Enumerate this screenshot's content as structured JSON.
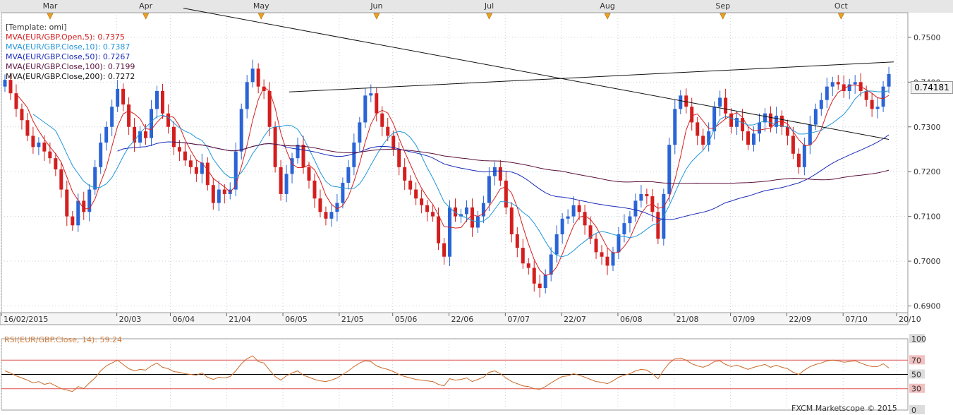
{
  "chart_data": {
    "type": "candlestick",
    "template": "[Template: omi]",
    "instrument": "EUR/GBP",
    "current_price": "0.74181",
    "credit": "FXCM Marketscope © 2015",
    "months": [
      {
        "label": "Mar",
        "x": 1
      },
      {
        "label": "Apr",
        "x": 35
      },
      {
        "label": "May",
        "x": 76
      },
      {
        "label": "Jun",
        "x": 117
      },
      {
        "label": "Jul",
        "x": 157
      },
      {
        "label": "Aug",
        "x": 199
      },
      {
        "label": "Sep",
        "x": 240
      },
      {
        "label": "Oct",
        "x": 282
      }
    ],
    "date_labels": [
      {
        "label": "16/02/2015",
        "x": 0
      },
      {
        "label": "20/03",
        "x": 41
      },
      {
        "label": "06/04",
        "x": 60
      },
      {
        "label": "21/04",
        "x": 80
      },
      {
        "label": "06/05",
        "x": 100
      },
      {
        "label": "21/05",
        "x": 120
      },
      {
        "label": "05/06",
        "x": 139
      },
      {
        "label": "22/06",
        "x": 159
      },
      {
        "label": "07/07",
        "x": 179
      },
      {
        "label": "22/07",
        "x": 199
      },
      {
        "label": "06/08",
        "x": 219
      },
      {
        "label": "21/08",
        "x": 239
      },
      {
        "label": "07/09",
        "x": 259
      },
      {
        "label": "22/09",
        "x": 279
      },
      {
        "label": "07/10",
        "x": 299
      },
      {
        "label": "20/10",
        "x": 318
      }
    ],
    "y_axis": {
      "min": 0.6885,
      "max": 0.7555,
      "ticks": [
        "0.6900",
        "0.7000",
        "0.7100",
        "0.7200",
        "0.7300",
        "0.7400",
        "0.7500"
      ],
      "tick_values": [
        0.69,
        0.7,
        0.71,
        0.72,
        0.73,
        0.74,
        0.75
      ]
    },
    "x_range": [
      0,
      322
    ],
    "legend": [
      {
        "text": "[Template: omi]",
        "color": "#333333"
      },
      {
        "text": "MVA(EUR/GBP.Open,5): 0.7375",
        "color": "#d62020"
      },
      {
        "text": "MVA(EUR/GBP.Close,10): 0.7387",
        "color": "#2196d9"
      },
      {
        "text": "MVA(EUR/GBP.Close,50): 0.7267",
        "color": "#1a2bb8"
      },
      {
        "text": "MVA(EUR/GBP.Close,100): 0.7199",
        "color": "#5a0f3a"
      },
      {
        "text": "MVA(EUR/GBP.Close,200): 0.7272",
        "color": "#111111"
      }
    ],
    "colors": {
      "up": "#2a64d6",
      "down": "#d41e1e",
      "mva5": "#d62020",
      "mva10": "#2196d9",
      "mva50": "#1a2bb8",
      "mva100": "#5a0f3a",
      "mva200": "#111111",
      "trend": "#111111",
      "rsi": "#c96a2a"
    },
    "closes": [
      0.7405,
      0.7375,
      0.734,
      0.7315,
      0.728,
      0.7255,
      0.7265,
      0.7245,
      0.723,
      0.7205,
      0.716,
      0.71,
      0.708,
      0.7135,
      0.711,
      0.716,
      0.721,
      0.7265,
      0.73,
      0.7345,
      0.7385,
      0.735,
      0.73,
      0.7265,
      0.729,
      0.7275,
      0.734,
      0.738,
      0.733,
      0.73,
      0.7255,
      0.7245,
      0.7225,
      0.721,
      0.7195,
      0.722,
      0.717,
      0.713,
      0.716,
      0.715,
      0.716,
      0.7245,
      0.734,
      0.74,
      0.743,
      0.739,
      0.738,
      0.73,
      0.721,
      0.715,
      0.7195,
      0.723,
      0.726,
      0.721,
      0.718,
      0.714,
      0.711,
      0.7095,
      0.711,
      0.713,
      0.7175,
      0.721,
      0.7265,
      0.731,
      0.737,
      0.7375,
      0.733,
      0.73,
      0.728,
      0.725,
      0.721,
      0.718,
      0.716,
      0.714,
      0.7125,
      0.711,
      0.71,
      0.704,
      0.701,
      0.712,
      0.71,
      0.7105,
      0.712,
      0.7075,
      0.71,
      0.713,
      0.719,
      0.721,
      0.718,
      0.712,
      0.706,
      0.703,
      0.6995,
      0.6985,
      0.695,
      0.694,
      0.697,
      0.7015,
      0.706,
      0.7095,
      0.71,
      0.7125,
      0.711,
      0.708,
      0.705,
      0.702,
      0.701,
      0.699,
      0.702,
      0.706,
      0.7085,
      0.71,
      0.7135,
      0.715,
      0.7145,
      0.711,
      0.705,
      0.715,
      0.726,
      0.734,
      0.737,
      0.7345,
      0.731,
      0.728,
      0.726,
      0.729,
      0.7345,
      0.7365,
      0.733,
      0.73,
      0.732,
      0.729,
      0.726,
      0.7285,
      0.731,
      0.733,
      0.73,
      0.7325,
      0.73,
      0.728,
      0.724,
      0.721,
      0.726,
      0.7305,
      0.734,
      0.736,
      0.739,
      0.74,
      0.7395,
      0.738,
      0.7395,
      0.74,
      0.738,
      0.736,
      0.734,
      0.7345,
      0.739,
      0.7418
    ],
    "rsi": {
      "label": "RSI(EUR/GBP.Close, 14): 59.24",
      "levels": [
        "100",
        "70",
        "50",
        "30",
        "0"
      ],
      "level_values": [
        100,
        70,
        50,
        30,
        0
      ],
      "values": [
        55,
        52,
        48,
        45,
        42,
        38,
        40,
        36,
        38,
        34,
        30,
        28,
        26,
        33,
        30,
        38,
        45,
        55,
        62,
        66,
        70,
        64,
        58,
        55,
        57,
        56,
        62,
        66,
        60,
        58,
        54,
        53,
        51,
        50,
        49,
        52,
        46,
        43,
        46,
        45,
        47,
        55,
        65,
        72,
        76,
        68,
        66,
        56,
        47,
        42,
        48,
        52,
        55,
        49,
        46,
        43,
        41,
        40,
        42,
        45,
        50,
        55,
        61,
        66,
        69,
        68,
        62,
        59,
        57,
        54,
        50,
        47,
        45,
        43,
        42,
        41,
        40,
        36,
        34,
        44,
        42,
        43,
        45,
        40,
        43,
        46,
        53,
        55,
        51,
        45,
        40,
        37,
        34,
        33,
        30,
        29,
        33,
        38,
        43,
        47,
        48,
        51,
        49,
        46,
        43,
        40,
        39,
        37,
        41,
        46,
        49,
        51,
        55,
        57,
        56,
        51,
        44,
        56,
        66,
        72,
        73,
        70,
        65,
        62,
        60,
        63,
        68,
        69,
        64,
        61,
        63,
        60,
        57,
        60,
        62,
        64,
        60,
        63,
        60,
        58,
        53,
        50,
        56,
        61,
        64,
        66,
        69,
        70,
        69,
        67,
        68,
        69,
        66,
        63,
        61,
        61,
        65,
        59
      ]
    }
  }
}
